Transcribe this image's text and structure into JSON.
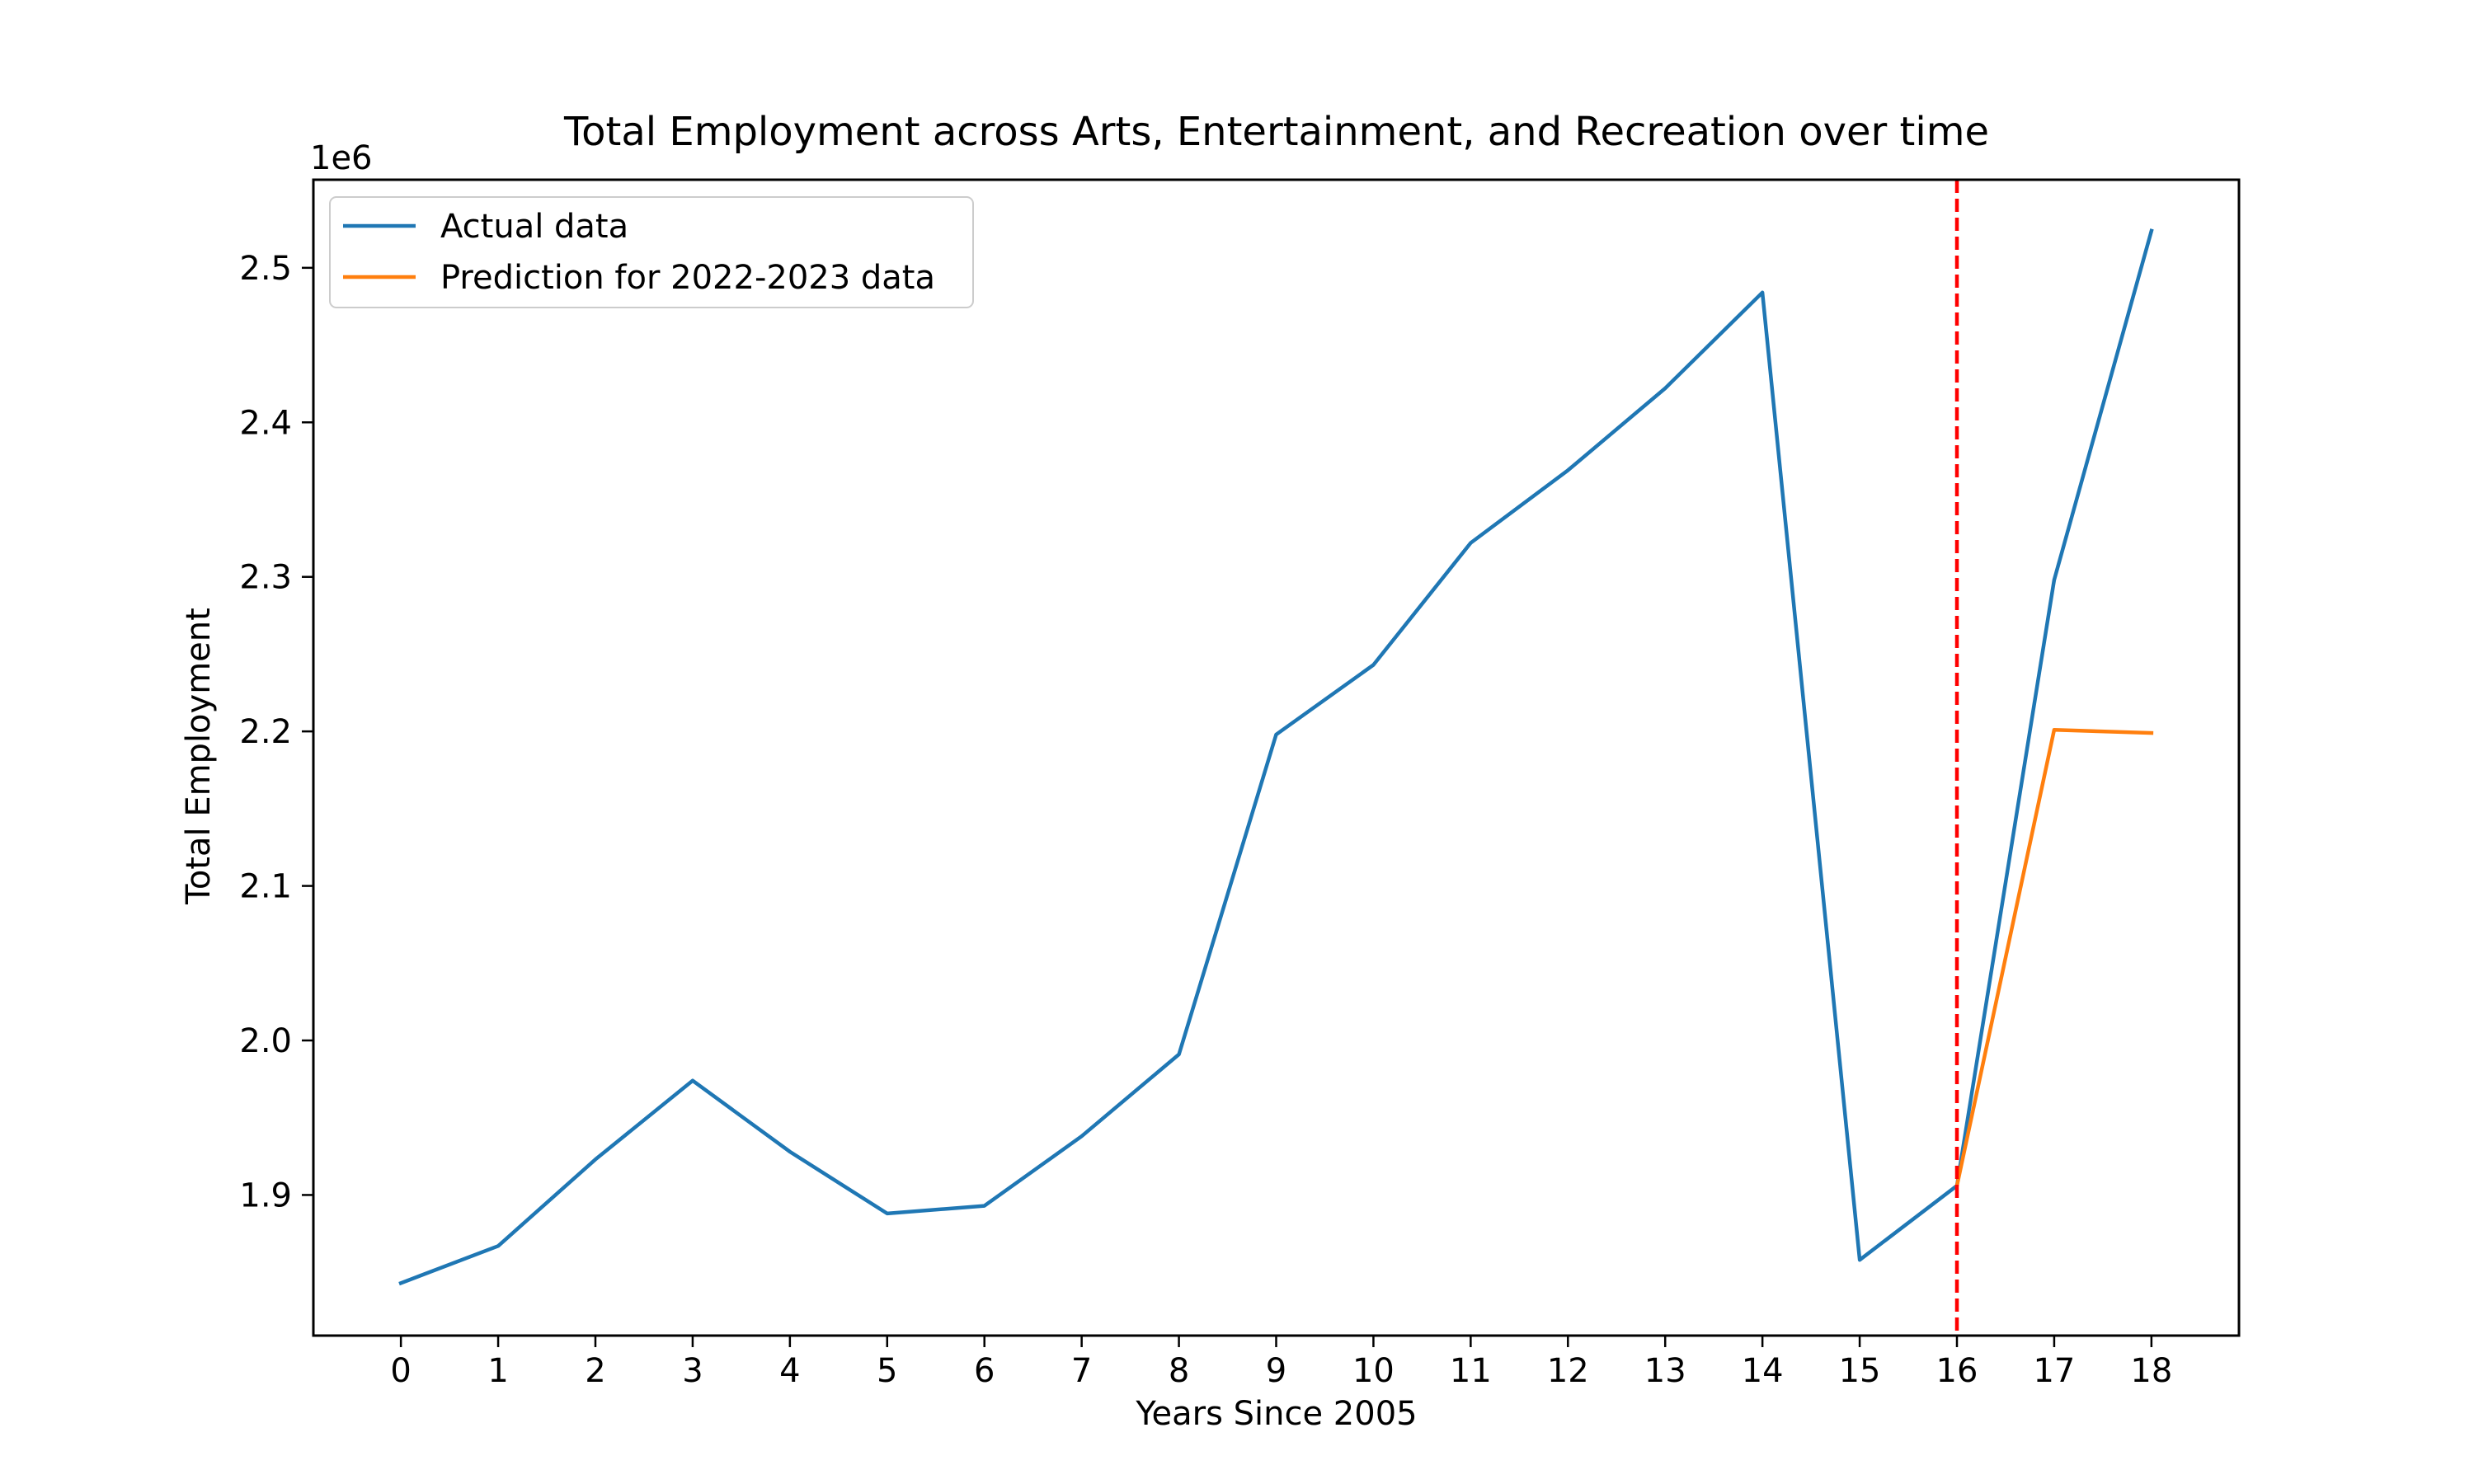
{
  "chart_data": {
    "type": "line",
    "title": "Total Employment across Arts, Entertainment, and Recreation over time",
    "xlabel": "Years Since 2005",
    "ylabel": "Total Employment",
    "offset_label": "1e6",
    "x_ticks": [
      0,
      1,
      2,
      3,
      4,
      5,
      6,
      7,
      8,
      9,
      10,
      11,
      12,
      13,
      14,
      15,
      16,
      17,
      18
    ],
    "x_tick_labels": [
      "0",
      "1",
      "2",
      "3",
      "4",
      "5",
      "6",
      "7",
      "8",
      "9",
      "10",
      "11",
      "12",
      "13",
      "14",
      "15",
      "16",
      "17",
      "18"
    ],
    "y_ticks": [
      1.9,
      2.0,
      2.1,
      2.2,
      2.3,
      2.4,
      2.5
    ],
    "y_tick_labels": [
      "1.9",
      "2.0",
      "2.1",
      "2.2",
      "2.3",
      "2.4",
      "2.5"
    ],
    "xlim": [
      -0.9,
      18.9
    ],
    "ylim": [
      1.809,
      2.557
    ],
    "y_scale_note": "values in millions (axis multiplier 1e6)",
    "grid": false,
    "legend_position": "upper-left",
    "series": [
      {
        "name": "Actual data",
        "color": "#1f77b4",
        "x": [
          0,
          1,
          2,
          3,
          4,
          5,
          6,
          7,
          8,
          9,
          10,
          11,
          12,
          13,
          14,
          15,
          16,
          17,
          18
        ],
        "values": [
          1.843,
          1.867,
          1.923,
          1.974,
          1.928,
          1.888,
          1.893,
          1.938,
          1.991,
          2.198,
          2.243,
          2.322,
          2.369,
          2.422,
          2.484,
          1.858,
          1.906,
          2.298,
          2.524
        ]
      },
      {
        "name": "Prediction for 2022-2023 data",
        "color": "#ff7f0e",
        "x": [
          16,
          17,
          18
        ],
        "values": [
          1.906,
          2.201,
          2.199
        ]
      }
    ],
    "annotations": [
      {
        "type": "vertical-line",
        "x": 16,
        "color": "#ff0000",
        "style": "dashed"
      }
    ]
  }
}
